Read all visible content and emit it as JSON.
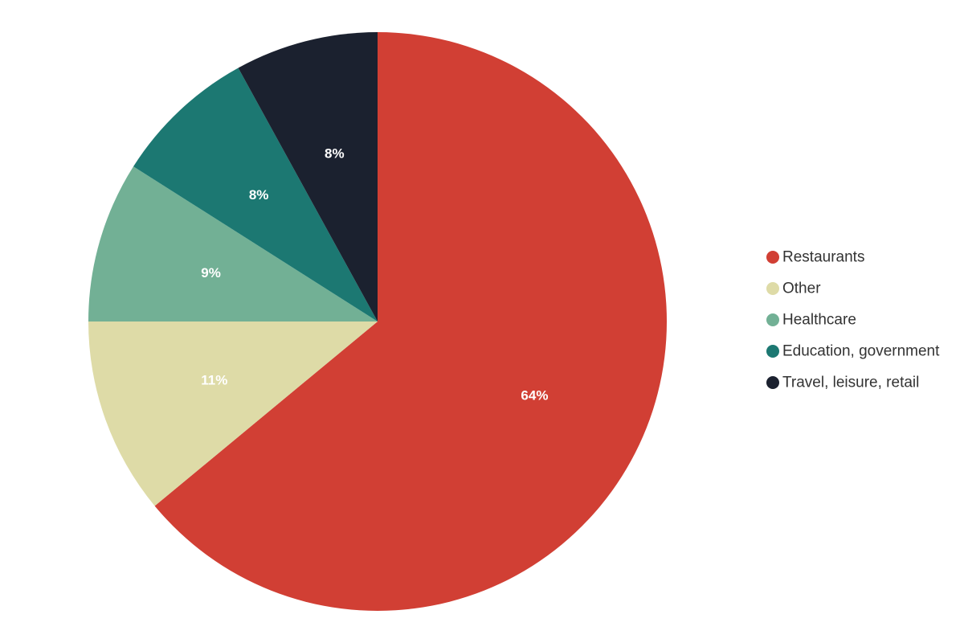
{
  "chart_data": {
    "type": "pie",
    "title": "",
    "start_angle_deg": 0,
    "direction": "clockwise",
    "legend_position": "right",
    "slices": [
      {
        "name": "Restaurants",
        "value": 64,
        "label": "64%",
        "color": "#d13f34"
      },
      {
        "name": "Other",
        "value": 11,
        "label": "11%",
        "color": "#dedba7"
      },
      {
        "name": "Healthcare",
        "value": 9,
        "label": "9%",
        "color": "#72b095"
      },
      {
        "name": "Education, government",
        "value": 8,
        "label": "8%",
        "color": "#1c7872"
      },
      {
        "name": "Travel, leisure, retail",
        "value": 8,
        "label": "8%",
        "color": "#1b212f"
      }
    ]
  }
}
